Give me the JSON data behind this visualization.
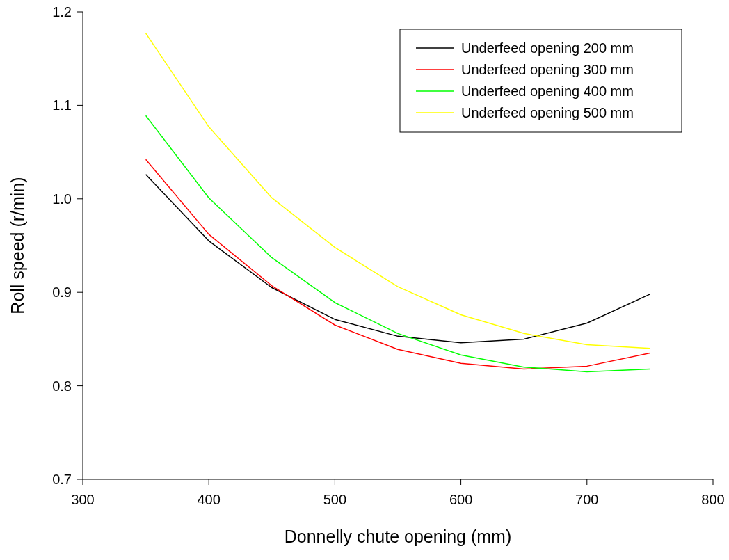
{
  "chart_data": {
    "type": "line",
    "xlabel": "Donnelly chute opening (mm)",
    "ylabel": "Roll speed (r/min)",
    "x": [
      350,
      400,
      450,
      500,
      550,
      600,
      650,
      700,
      750
    ],
    "xlim": [
      300,
      800
    ],
    "xticks": [
      300,
      400,
      500,
      600,
      700,
      800
    ],
    "ylim": [
      0.7,
      1.2
    ],
    "yticks": [
      {
        "value": 0.7,
        "label": "0.7"
      },
      {
        "value": 0.8,
        "label": "0.8"
      },
      {
        "value": 0.9,
        "label": "0.9"
      },
      {
        "value": 1.0,
        "label": "1.0"
      },
      {
        "value": 1.1,
        "label": "1.1"
      },
      {
        "value": 1.2,
        "label": "1.2"
      }
    ],
    "grid": false,
    "legend": "top right",
    "marker": "none",
    "line_style": "solid",
    "series": [
      {
        "name": "Underfeed opening 200 mm",
        "color": "#000000",
        "values": [
          1.026,
          0.955,
          0.905,
          0.871,
          0.853,
          0.846,
          0.85,
          0.867,
          0.898
        ]
      },
      {
        "name": "Underfeed opening 300 mm",
        "color": "#ff0000",
        "values": [
          1.042,
          0.962,
          0.907,
          0.865,
          0.839,
          0.824,
          0.818,
          0.821,
          0.835
        ]
      },
      {
        "name": "Underfeed opening 400 mm",
        "color": "#00ff00",
        "values": [
          1.089,
          1.001,
          0.937,
          0.889,
          0.856,
          0.833,
          0.82,
          0.815,
          0.818
        ]
      },
      {
        "name": "Underfeed opening 500 mm",
        "color": "#ffff00",
        "values": [
          1.177,
          1.077,
          1.001,
          0.948,
          0.906,
          0.876,
          0.856,
          0.844,
          0.84
        ]
      }
    ]
  }
}
